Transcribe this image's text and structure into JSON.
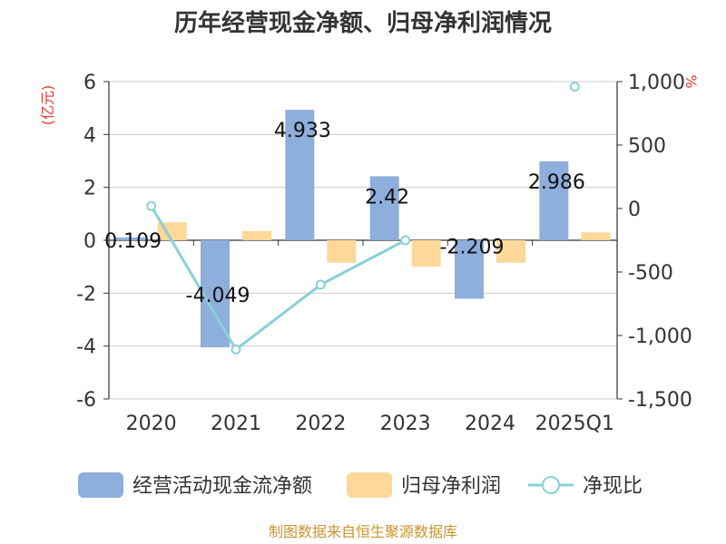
{
  "chart_data": {
    "type": "bar",
    "title": "历年经营现金净额、归母净利润情况",
    "categories": [
      "2020",
      "2021",
      "2022",
      "2023",
      "2024",
      "2025Q1"
    ],
    "series": [
      {
        "name": "经营活动现金流净额",
        "type": "bar",
        "axis": "left",
        "color": "#8eaedb",
        "values": [
          0.109,
          -4.049,
          4.933,
          2.42,
          -2.209,
          2.986
        ],
        "labels": [
          "0.109",
          "-4.049",
          "4.933",
          "2.42",
          "-2.209",
          "2.986"
        ]
      },
      {
        "name": "归母净利润",
        "type": "bar",
        "axis": "left",
        "color": "#fdd898",
        "values": [
          0.68,
          0.35,
          -0.85,
          -1.0,
          -0.85,
          0.3
        ]
      },
      {
        "name": "净现比",
        "type": "line",
        "axis": "right",
        "color": "#86d2d6",
        "values": [
          20,
          -1110,
          -600,
          -250,
          null,
          960
        ]
      }
    ],
    "y_left": {
      "unit": "(亿元)",
      "min": -6,
      "max": 6,
      "ticks": [
        "6",
        "4",
        "2",
        "0",
        "-2",
        "-4",
        "-6"
      ]
    },
    "y_right": {
      "unit": "%",
      "min": -1500,
      "max": 1000,
      "ticks": [
        "1,000",
        "500",
        "0",
        "-500",
        "-1,000",
        "-1,500"
      ]
    },
    "grid": true,
    "legend_position": "bottom"
  },
  "source": "制图数据来自恒生聚源数据库"
}
